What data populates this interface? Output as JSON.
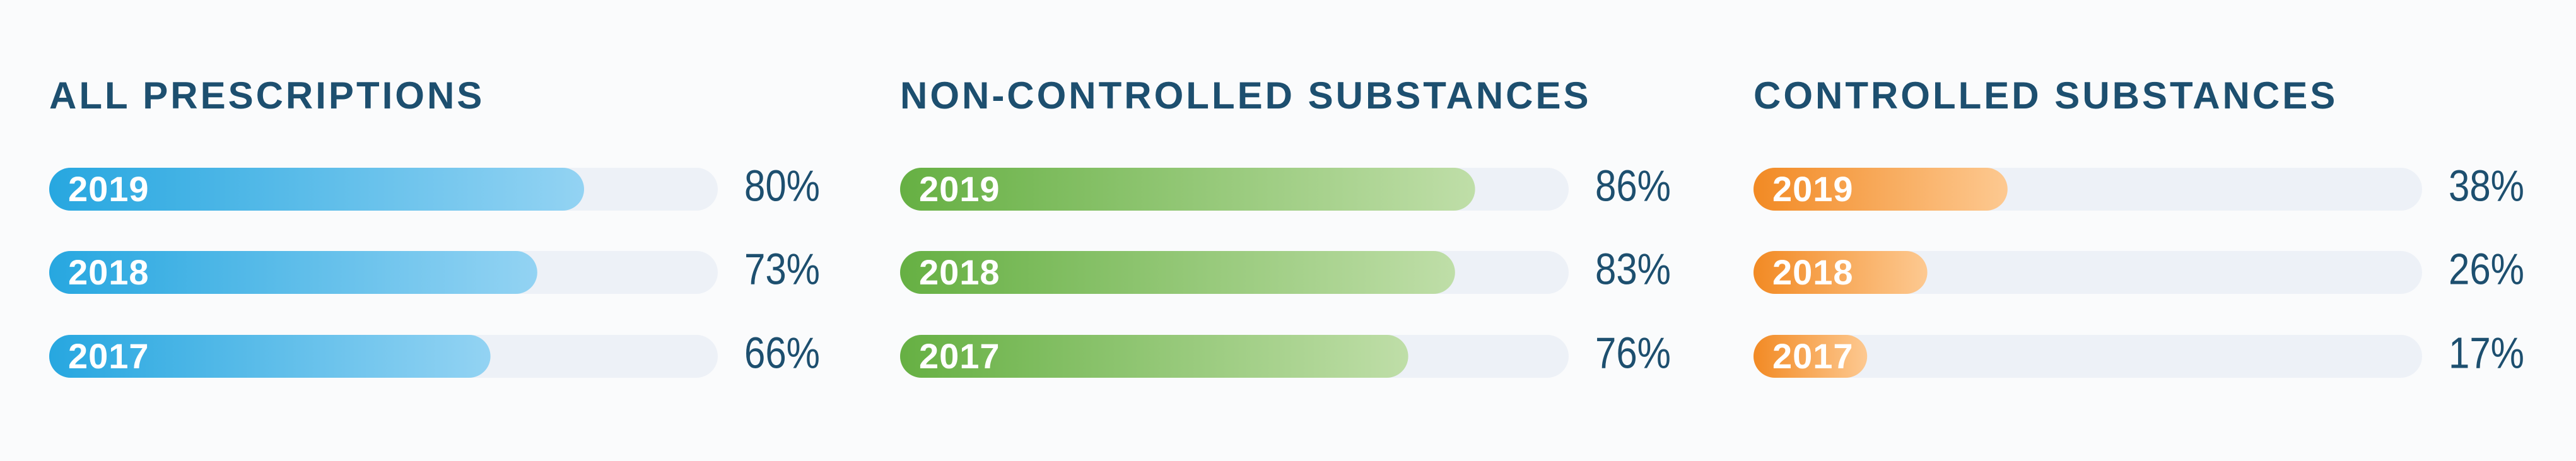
{
  "chart_data": [
    {
      "type": "bar",
      "title": "ALL PRESCRIPTIONS",
      "categories": [
        "2019",
        "2018",
        "2017"
      ],
      "values": [
        80,
        73,
        66
      ],
      "value_labels": [
        "80%",
        "73%",
        "66%"
      ],
      "color": "#27a7e0",
      "color_end": "#93d3f3",
      "xlim": [
        0,
        100
      ]
    },
    {
      "type": "bar",
      "title": "NON-CONTROLLED SUBSTANCES",
      "categories": [
        "2019",
        "2018",
        "2017"
      ],
      "values": [
        86,
        83,
        76
      ],
      "value_labels": [
        "86%",
        "83%",
        "76%"
      ],
      "color": "#66b043",
      "color_end": "#bfdea8",
      "xlim": [
        0,
        100
      ]
    },
    {
      "type": "bar",
      "title": "CONTROLLED SUBSTANCES",
      "categories": [
        "2019",
        "2018",
        "2017"
      ],
      "values": [
        38,
        26,
        17
      ],
      "value_labels": [
        "38%",
        "26%",
        "17%"
      ],
      "color": "#f28a24",
      "color_end": "#fdc991",
      "xlim": [
        0,
        100
      ]
    }
  ]
}
